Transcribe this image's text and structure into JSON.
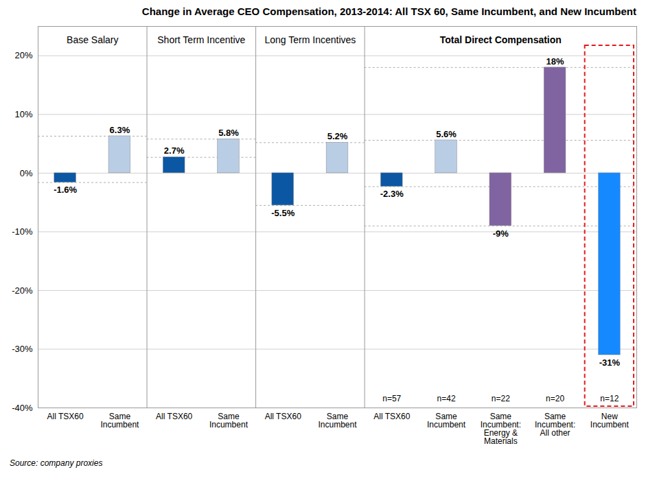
{
  "chart_data": {
    "type": "bar",
    "title": "Change in Average CEO Compensation, 2013-2014: All TSX 60, Same Incumbent, and New Incumbent",
    "caption": "Source: company proxies",
    "categories": [
      "All TSX60",
      "Same Incumbent",
      "All TSX60",
      "Same Incumbent",
      "All TSX60",
      "Same Incumbent",
      "All TSX60",
      "Same Incumbent",
      "Same Incumbent: Energy & Materials",
      "Same Incumbent: All other",
      "New Incumbent"
    ],
    "groups": [
      "Base Salary",
      "Base Salary",
      "Short Term Incentive",
      "Short Term Incentive",
      "Long Term Incentives",
      "Long Term Incentives",
      "Total Direct Compensation",
      "Total Direct Compensation",
      "Total Direct Compensation",
      "Total Direct Compensation",
      "Total Direct Compensation"
    ],
    "values": [
      -1.6,
      6.3,
      2.7,
      5.8,
      -5.5,
      5.2,
      -2.3,
      5.6,
      -9,
      18,
      -31
    ],
    "value_labels": [
      "-1.6%",
      "6.3%",
      "2.7%",
      "5.8%",
      "-5.5%",
      "5.2%",
      "-2.3%",
      "5.6%",
      "-9%",
      "18%",
      "-31%"
    ],
    "colors": [
      "#0b57a4",
      "#b9cde5",
      "#0b57a4",
      "#b9cde5",
      "#0b57a4",
      "#b9cde5",
      "#0b57a4",
      "#b9cde5",
      "#8064a2",
      "#8064a2",
      "#1589ff"
    ],
    "n_labels": [
      null,
      null,
      null,
      null,
      null,
      null,
      "n=57",
      "n=42",
      "n=22",
      "n=20",
      "n=12"
    ],
    "ylim": [
      -40,
      25
    ],
    "yticks": [
      {
        "value": -40,
        "label": "-40%"
      },
      {
        "value": -30,
        "label": "-30%"
      },
      {
        "value": -20,
        "label": "-20%"
      },
      {
        "value": -10,
        "label": "-10%"
      },
      {
        "value": 0,
        "label": "0%"
      },
      {
        "value": 10,
        "label": "10%"
      },
      {
        "value": 20,
        "label": "20%"
      }
    ],
    "grid": true,
    "data_labels": true
  }
}
